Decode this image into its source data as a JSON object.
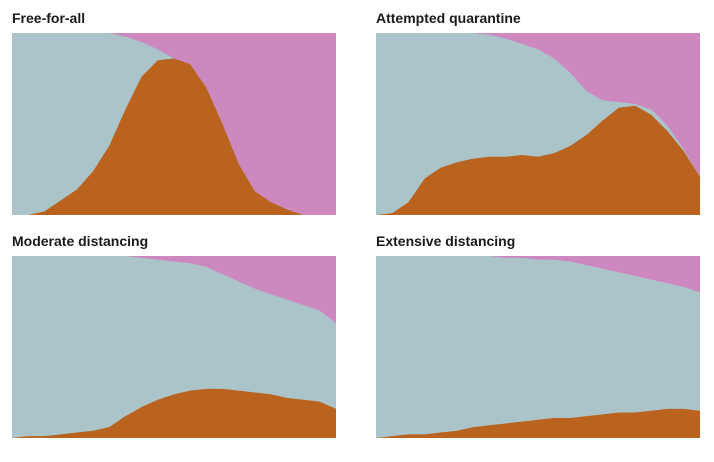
{
  "colors": {
    "healthy": "#abc4c9",
    "sick": "#ba631f",
    "recovered": "#cd88c0"
  },
  "chart_data": [
    {
      "type": "area",
      "stacked": "normalized",
      "title": "Free-for-all",
      "x": [
        0,
        0.05,
        0.1,
        0.15,
        0.2,
        0.25,
        0.3,
        0.35,
        0.4,
        0.45,
        0.5,
        0.55,
        0.6,
        0.65,
        0.7,
        0.75,
        0.8,
        0.85,
        0.9,
        0.95,
        1.0
      ],
      "series": [
        {
          "key": "sick",
          "values": [
            0.0,
            0.0,
            0.02,
            0.08,
            0.14,
            0.24,
            0.38,
            0.58,
            0.76,
            0.85,
            0.86,
            0.83,
            0.7,
            0.5,
            0.28,
            0.13,
            0.07,
            0.03,
            0.0,
            0.0,
            0.0
          ]
        },
        {
          "key": "recovered",
          "values": [
            0.0,
            0.0,
            0.0,
            0.0,
            0.0,
            0.0,
            0.0,
            0.02,
            0.05,
            0.09,
            0.14,
            0.17,
            0.3,
            0.5,
            0.72,
            0.87,
            0.93,
            0.97,
            1.0,
            1.0,
            1.0
          ]
        }
      ]
    },
    {
      "type": "area",
      "stacked": "normalized",
      "title": "Attempted quarantine",
      "x": [
        0,
        0.05,
        0.1,
        0.15,
        0.2,
        0.25,
        0.3,
        0.35,
        0.4,
        0.45,
        0.5,
        0.55,
        0.6,
        0.65,
        0.7,
        0.75,
        0.8,
        0.85,
        0.9,
        0.95,
        1.0
      ],
      "series": [
        {
          "key": "sick",
          "values": [
            0.0,
            0.01,
            0.07,
            0.2,
            0.26,
            0.29,
            0.31,
            0.32,
            0.32,
            0.33,
            0.32,
            0.34,
            0.38,
            0.44,
            0.52,
            0.59,
            0.6,
            0.55,
            0.46,
            0.35,
            0.21
          ]
        },
        {
          "key": "recovered",
          "values": [
            0.0,
            0.0,
            0.0,
            0.0,
            0.0,
            0.0,
            0.0,
            0.01,
            0.03,
            0.06,
            0.09,
            0.14,
            0.22,
            0.32,
            0.37,
            0.38,
            0.39,
            0.42,
            0.51,
            0.64,
            0.79
          ]
        }
      ]
    },
    {
      "type": "area",
      "stacked": "normalized",
      "title": "Moderate distancing",
      "x": [
        0,
        0.05,
        0.1,
        0.15,
        0.2,
        0.25,
        0.3,
        0.35,
        0.4,
        0.45,
        0.5,
        0.55,
        0.6,
        0.65,
        0.7,
        0.75,
        0.8,
        0.85,
        0.9,
        0.95,
        1.0
      ],
      "series": [
        {
          "key": "sick",
          "values": [
            0.0,
            0.01,
            0.01,
            0.02,
            0.03,
            0.04,
            0.06,
            0.12,
            0.17,
            0.21,
            0.24,
            0.26,
            0.27,
            0.27,
            0.26,
            0.25,
            0.24,
            0.22,
            0.21,
            0.2,
            0.16
          ]
        },
        {
          "key": "recovered",
          "values": [
            0.0,
            0.0,
            0.0,
            0.0,
            0.0,
            0.0,
            0.0,
            0.0,
            0.01,
            0.02,
            0.03,
            0.04,
            0.06,
            0.1,
            0.14,
            0.18,
            0.21,
            0.24,
            0.27,
            0.3,
            0.37
          ]
        }
      ]
    },
    {
      "type": "area",
      "stacked": "normalized",
      "title": "Extensive distancing",
      "x": [
        0,
        0.05,
        0.1,
        0.15,
        0.2,
        0.25,
        0.3,
        0.35,
        0.4,
        0.45,
        0.5,
        0.55,
        0.6,
        0.65,
        0.7,
        0.75,
        0.8,
        0.85,
        0.9,
        0.95,
        1.0
      ],
      "series": [
        {
          "key": "sick",
          "values": [
            0.0,
            0.01,
            0.02,
            0.02,
            0.03,
            0.04,
            0.06,
            0.07,
            0.08,
            0.09,
            0.1,
            0.11,
            0.11,
            0.12,
            0.13,
            0.14,
            0.14,
            0.15,
            0.16,
            0.16,
            0.15
          ]
        },
        {
          "key": "recovered",
          "values": [
            0.0,
            0.0,
            0.0,
            0.0,
            0.0,
            0.0,
            0.0,
            0.0,
            0.01,
            0.01,
            0.02,
            0.02,
            0.03,
            0.05,
            0.07,
            0.09,
            0.11,
            0.13,
            0.15,
            0.17,
            0.2
          ]
        }
      ]
    }
  ]
}
